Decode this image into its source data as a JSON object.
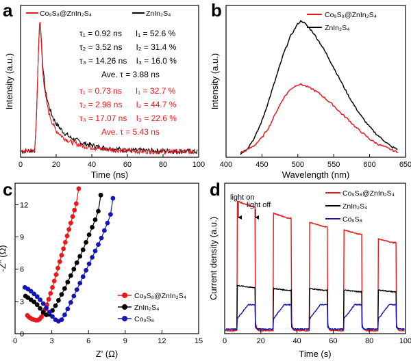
{
  "colors": {
    "red": "#e8191c",
    "black": "#000000",
    "blue": "#1515b5",
    "axis": "#000000"
  },
  "chart_data": [
    {
      "panel_label": "a",
      "type": "line",
      "title": "",
      "xlabel": "Time (ns)",
      "ylabel": "Intensity (a.u.)",
      "xlim": [
        0,
        100
      ],
      "ylim": [
        0,
        1
      ],
      "xticks": [
        "0",
        "20",
        "40",
        "60",
        "80",
        "100"
      ],
      "yticks": [],
      "legend": {
        "position": "top",
        "entries": [
          {
            "text": "Co₉S₈@ZnIn₂S₄",
            "color": "#e8191c"
          },
          {
            "text": "ZnIn₂S₄",
            "color": "#000000"
          }
        ]
      },
      "annotations_black": [
        "τ₁ = 0.92 ns      I₁ = 52.6 %",
        "τ₂ = 3.52 ns      I₂ = 31.4 %",
        "τ₃ = 14.26 ns    I₃ = 16.0 %",
        "Ave. τ = 3.88 ns"
      ],
      "annotations_red": [
        "τ₁ = 0.73 ns      I₁ = 32.7 %",
        "τ₂ = 2.98 ns      I₂ = 44.7 %",
        "τ₃ = 17.07 ns    I₃ = 22.6 %",
        "Ave. τ = 5.43 ns"
      ],
      "series": [
        {
          "name": "ZnIn₂S₄",
          "color": "#000000",
          "baseline": 0.04,
          "x": [
            0,
            8,
            9,
            10,
            10.8,
            11.5,
            12.5,
            14,
            16,
            18,
            20,
            24,
            28,
            35,
            45,
            60,
            80,
            100
          ],
          "y": [
            0.04,
            0.05,
            0.3,
            0.75,
            0.98,
            0.88,
            0.64,
            0.47,
            0.36,
            0.29,
            0.24,
            0.18,
            0.14,
            0.1,
            0.07,
            0.05,
            0.045,
            0.04
          ]
        },
        {
          "name": "Co₉S₈@ZnIn₂S₄",
          "color": "#e8191c",
          "baseline": 0.04,
          "x": [
            0,
            8,
            9,
            10,
            10.8,
            11.5,
            12.5,
            14,
            16,
            18,
            20,
            24,
            28,
            35,
            45,
            60,
            80,
            100
          ],
          "y": [
            0.04,
            0.05,
            0.3,
            0.75,
            1.0,
            0.86,
            0.6,
            0.43,
            0.31,
            0.24,
            0.19,
            0.14,
            0.11,
            0.08,
            0.06,
            0.045,
            0.04,
            0.04
          ]
        }
      ]
    },
    {
      "panel_label": "b",
      "type": "line",
      "title": "",
      "xlabel": "Wavelength (nm)",
      "ylabel": "Intensity (a.u.)",
      "xlim": [
        400,
        650
      ],
      "ylim": [
        0,
        1
      ],
      "xticks": [
        "400",
        "450",
        "500",
        "550",
        "600",
        "650"
      ],
      "yticks": [],
      "legend": {
        "position": "top-right",
        "entries": [
          {
            "text": "Co₉S₈@ZnIn₂S₄",
            "color": "#e8191c"
          },
          {
            "text": "ZnIn₂S₄",
            "color": "#000000"
          }
        ]
      },
      "series": [
        {
          "name": "ZnIn₂S₄",
          "color": "#000000",
          "x": [
            420,
            430,
            440,
            450,
            460,
            470,
            480,
            490,
            500,
            505,
            510,
            520,
            530,
            540,
            550,
            560,
            570,
            580,
            590,
            600,
            610,
            620,
            630,
            640
          ],
          "y": [
            0.02,
            0.06,
            0.13,
            0.24,
            0.38,
            0.53,
            0.68,
            0.8,
            0.88,
            0.9,
            0.88,
            0.83,
            0.76,
            0.68,
            0.59,
            0.5,
            0.41,
            0.33,
            0.26,
            0.2,
            0.15,
            0.11,
            0.07,
            0.05
          ]
        },
        {
          "name": "Co₉S₈@ZnIn₂S₄",
          "color": "#e8191c",
          "x": [
            420,
            430,
            440,
            450,
            460,
            470,
            480,
            490,
            500,
            505,
            510,
            520,
            530,
            540,
            550,
            560,
            570,
            580,
            590,
            600,
            610,
            620,
            630,
            640
          ],
          "y": [
            0.03,
            0.05,
            0.08,
            0.13,
            0.2,
            0.3,
            0.39,
            0.45,
            0.48,
            0.48,
            0.47,
            0.45,
            0.42,
            0.38,
            0.34,
            0.29,
            0.25,
            0.2,
            0.16,
            0.12,
            0.09,
            0.07,
            0.05,
            0.03
          ]
        }
      ]
    },
    {
      "panel_label": "c",
      "type": "scatter",
      "title": "",
      "xlabel": "Z' (Ω)",
      "ylabel": "-Z'' (Ω)",
      "xlim": [
        0,
        15
      ],
      "ylim": [
        0,
        14
      ],
      "xticks": [
        "0",
        "3",
        "6",
        "9",
        "12",
        "15"
      ],
      "yticks": [
        "0",
        "3",
        "6",
        "9",
        "12"
      ],
      "legend": {
        "position": "bottom-left",
        "entries": [
          {
            "text": "Co₉S₈@ZnIn₂S₄",
            "color": "#e8191c"
          },
          {
            "text": "ZnIn₂S₄",
            "color": "#000000"
          },
          {
            "text": "Co₉S₈",
            "color": "#1515b5"
          }
        ]
      },
      "series": [
        {
          "name": "Co₉S₈@ZnIn₂S₄",
          "color": "#e8191c",
          "marker": "circle",
          "x": [
            1.0,
            1.12,
            1.25,
            1.4,
            1.55,
            1.7,
            1.85,
            2.0,
            2.15,
            2.3,
            2.45,
            2.6,
            2.75,
            2.9,
            3.05,
            3.2,
            3.35,
            3.5,
            3.65,
            3.8,
            3.95,
            4.1,
            4.25,
            4.4,
            4.55,
            4.7,
            4.85,
            5.0,
            5.2
          ],
          "y": [
            1.7,
            1.55,
            1.45,
            1.35,
            1.3,
            1.25,
            1.25,
            1.35,
            1.55,
            1.85,
            2.25,
            2.7,
            3.2,
            3.75,
            4.3,
            4.9,
            5.5,
            6.1,
            6.7,
            7.3,
            7.9,
            8.5,
            9.1,
            9.7,
            10.3,
            10.9,
            11.5,
            12.1,
            13.5
          ]
        },
        {
          "name": "ZnIn₂S₄",
          "color": "#000000",
          "marker": "circle",
          "x": [
            0.85,
            1.05,
            1.3,
            1.55,
            1.8,
            2.05,
            2.3,
            2.55,
            2.8,
            3.05,
            3.3,
            3.55,
            3.8,
            4.05,
            4.3,
            4.55,
            4.8,
            5.05,
            5.3,
            5.55,
            5.8,
            6.05,
            6.3,
            6.55,
            6.8,
            7.0
          ],
          "y": [
            3.5,
            3.35,
            3.15,
            2.95,
            2.7,
            2.35,
            2.0,
            1.75,
            1.8,
            2.15,
            2.6,
            3.1,
            3.65,
            4.2,
            4.8,
            5.4,
            6.0,
            6.6,
            7.2,
            7.8,
            8.5,
            9.2,
            9.9,
            10.6,
            11.4,
            12.9
          ]
        },
        {
          "name": "Co₉S₈",
          "color": "#1515b5",
          "marker": "circle",
          "x": [
            0.8,
            1.05,
            1.3,
            1.55,
            1.8,
            2.05,
            2.3,
            2.55,
            2.8,
            3.05,
            3.3,
            3.55,
            3.8,
            4.05,
            4.3,
            4.55,
            4.8,
            5.05,
            5.3,
            5.55,
            5.8,
            6.05,
            6.3,
            6.55,
            6.8,
            7.05,
            7.3,
            7.55,
            7.8,
            8.0
          ],
          "y": [
            4.3,
            4.15,
            3.95,
            3.7,
            3.45,
            3.15,
            2.8,
            2.4,
            2.0,
            1.6,
            1.3,
            1.15,
            1.3,
            1.75,
            2.3,
            2.9,
            3.5,
            4.1,
            4.7,
            5.3,
            5.9,
            6.5,
            7.1,
            7.7,
            8.3,
            8.9,
            9.6,
            10.3,
            11.1,
            12.6
          ]
        }
      ]
    },
    {
      "panel_label": "d",
      "type": "line",
      "title": "",
      "xlabel": "Time (s)",
      "ylabel": "Current density (a.u.)",
      "xlim": [
        0,
        100
      ],
      "ylim": [
        0,
        1
      ],
      "xticks": [
        "0",
        "20",
        "40",
        "60",
        "80",
        "100"
      ],
      "yticks": [],
      "annotations": [
        "light on",
        "light off"
      ],
      "legend": {
        "position": "top-right",
        "entries": [
          {
            "text": "Co₉S₈@ZnIn₂S₄",
            "color": "#e8191c"
          },
          {
            "text": "ZnIn₂S₄",
            "color": "#000000"
          },
          {
            "text": "Co₉S₈",
            "color": "#1515b5"
          }
        ]
      },
      "on_off_cycles": [
        [
          7,
          17
        ],
        [
          27,
          37
        ],
        [
          47,
          57
        ],
        [
          66,
          76
        ],
        [
          85,
          95
        ]
      ],
      "series": [
        {
          "name": "Co₉S₈@ZnIn₂S₄",
          "color": "#e8191c",
          "dark": 0.02,
          "light_on": [
            0.88,
            0.8,
            0.74,
            0.69,
            0.63
          ]
        },
        {
          "name": "ZnIn₂S₄",
          "color": "#000000",
          "dark": 0.03,
          "light_on": [
            0.32,
            0.3,
            0.3,
            0.29,
            0.29
          ]
        },
        {
          "name": "Co₉S₈",
          "color": "#1515b5",
          "dark": 0.03,
          "light_on": [
            0.2,
            0.2,
            0.2,
            0.2,
            0.2
          ]
        }
      ]
    }
  ]
}
